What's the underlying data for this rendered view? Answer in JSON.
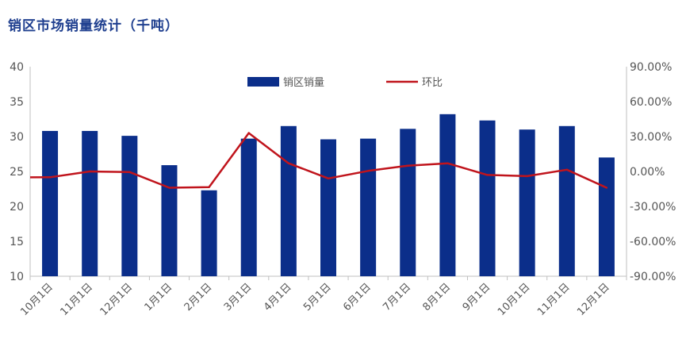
{
  "title": "销区市场销量统计（千吨）",
  "colors": {
    "bar": "#0b2e8a",
    "line": "#c0141c",
    "axis": "#bfbfbf"
  },
  "chart_data": {
    "type": "bar",
    "title": "销区市场销量统计（千吨）",
    "categories": [
      "10月1日",
      "11月1日",
      "12月1日",
      "1月1日",
      "2月1日",
      "3月1日",
      "4月1日",
      "5月1日",
      "6月1日",
      "7月1日",
      "8月1日",
      "9月1日",
      "10月1日",
      "11月1日",
      "12月1日"
    ],
    "series": [
      {
        "name": "销区销量",
        "type": "bar",
        "axis": "left",
        "values": [
          30.8,
          30.8,
          30.1,
          25.9,
          22.3,
          29.7,
          31.5,
          29.6,
          29.7,
          31.1,
          33.2,
          32.3,
          31.0,
          31.5,
          27.0
        ]
      },
      {
        "name": "环比",
        "type": "line",
        "axis": "right",
        "values": [
          -5.0,
          0.0,
          -0.5,
          -14.0,
          -13.5,
          33.0,
          7.0,
          -6.0,
          0.5,
          5.0,
          7.0,
          -3.0,
          -4.0,
          1.5,
          -14.0
        ]
      }
    ],
    "ylim_left": [
      10,
      40
    ],
    "yticks_left": [
      "10",
      "15",
      "20",
      "25",
      "30",
      "35",
      "40"
    ],
    "ylim_right": [
      -90,
      90
    ],
    "yticks_right": [
      "-90.00%",
      "-60.00%",
      "-30.00%",
      "0.00%",
      "30.00%",
      "60.00%",
      "90.00%"
    ],
    "legend_position": "top-center",
    "grid": false
  }
}
